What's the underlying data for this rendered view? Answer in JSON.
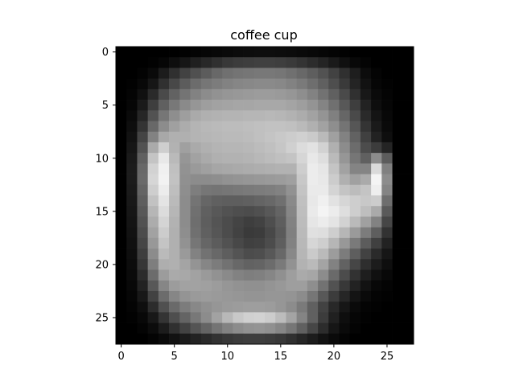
{
  "chart_data": {
    "type": "heatmap",
    "title": "coffee cup",
    "xlabel": "",
    "ylabel": "",
    "colormap": "gray",
    "x_range": [
      -0.5,
      27.5
    ],
    "y_range": [
      -0.5,
      27.5
    ],
    "x_ticks": [
      0,
      5,
      10,
      15,
      20,
      25
    ],
    "y_ticks": [
      0,
      5,
      10,
      15,
      20,
      25
    ],
    "grid": false,
    "value_range": [
      0,
      255
    ],
    "rows": 28,
    "cols": 28,
    "values": [
      [
        0,
        0,
        0,
        0,
        0,
        0,
        2,
        4,
        6,
        8,
        10,
        12,
        13,
        14,
        14,
        13,
        12,
        10,
        8,
        6,
        4,
        2,
        0,
        0,
        0,
        0,
        0,
        0
      ],
      [
        0,
        0,
        0,
        2,
        6,
        14,
        22,
        32,
        40,
        48,
        56,
        60,
        62,
        64,
        64,
        62,
        58,
        52,
        44,
        36,
        26,
        16,
        8,
        4,
        0,
        0,
        0,
        0
      ],
      [
        0,
        0,
        3,
        10,
        28,
        48,
        66,
        80,
        92,
        104,
        112,
        116,
        118,
        120,
        120,
        118,
        112,
        104,
        94,
        82,
        66,
        48,
        30,
        12,
        4,
        0,
        0,
        0
      ],
      [
        0,
        2,
        8,
        22,
        48,
        72,
        92,
        108,
        118,
        124,
        130,
        134,
        136,
        138,
        138,
        136,
        130,
        122,
        110,
        96,
        78,
        58,
        36,
        18,
        6,
        2,
        0,
        0
      ],
      [
        0,
        4,
        16,
        42,
        74,
        98,
        116,
        130,
        140,
        146,
        150,
        152,
        154,
        156,
        156,
        154,
        150,
        142,
        130,
        114,
        96,
        74,
        48,
        24,
        10,
        4,
        0,
        0
      ],
      [
        0,
        6,
        26,
        62,
        96,
        120,
        138,
        150,
        158,
        162,
        164,
        166,
        166,
        168,
        168,
        168,
        164,
        158,
        148,
        132,
        112,
        88,
        62,
        34,
        14,
        6,
        0,
        0
      ],
      [
        0,
        10,
        38,
        82,
        118,
        142,
        158,
        170,
        176,
        178,
        180,
        180,
        182,
        182,
        184,
        182,
        178,
        172,
        162,
        148,
        128,
        102,
        74,
        42,
        20,
        8,
        0,
        0
      ],
      [
        0,
        14,
        52,
        104,
        140,
        160,
        172,
        180,
        184,
        186,
        188,
        188,
        190,
        192,
        194,
        194,
        192,
        186,
        176,
        162,
        142,
        116,
        86,
        52,
        26,
        10,
        0,
        0
      ],
      [
        0,
        18,
        68,
        130,
        168,
        176,
        176,
        180,
        182,
        184,
        186,
        186,
        188,
        192,
        196,
        200,
        204,
        208,
        202,
        186,
        160,
        130,
        98,
        64,
        34,
        14,
        0,
        0
      ],
      [
        0,
        22,
        82,
        170,
        206,
        178,
        160,
        170,
        176,
        180,
        182,
        182,
        184,
        188,
        192,
        198,
        208,
        220,
        226,
        210,
        176,
        140,
        108,
        76,
        60,
        36,
        0,
        0
      ],
      [
        0,
        26,
        96,
        196,
        232,
        186,
        150,
        162,
        170,
        176,
        178,
        178,
        180,
        184,
        188,
        192,
        196,
        214,
        232,
        222,
        186,
        150,
        118,
        96,
        140,
        92,
        0,
        0
      ],
      [
        0,
        28,
        104,
        210,
        240,
        192,
        146,
        154,
        160,
        166,
        168,
        170,
        172,
        174,
        176,
        178,
        178,
        206,
        236,
        230,
        196,
        162,
        132,
        132,
        218,
        128,
        0,
        0
      ],
      [
        0,
        28,
        106,
        214,
        242,
        194,
        144,
        140,
        140,
        142,
        146,
        148,
        150,
        152,
        154,
        156,
        160,
        200,
        236,
        232,
        204,
        176,
        160,
        170,
        244,
        140,
        0,
        0
      ],
      [
        0,
        26,
        100,
        206,
        236,
        190,
        142,
        126,
        118,
        116,
        118,
        120,
        122,
        124,
        126,
        130,
        146,
        196,
        234,
        234,
        212,
        196,
        188,
        196,
        238,
        132,
        0,
        0
      ],
      [
        0,
        24,
        94,
        194,
        228,
        186,
        140,
        116,
        102,
        96,
        94,
        94,
        96,
        100,
        104,
        112,
        138,
        192,
        232,
        240,
        226,
        214,
        206,
        200,
        204,
        110,
        0,
        0
      ],
      [
        0,
        22,
        88,
        182,
        220,
        182,
        140,
        112,
        96,
        88,
        82,
        78,
        76,
        80,
        88,
        100,
        134,
        190,
        234,
        244,
        236,
        222,
        206,
        190,
        170,
        90,
        0,
        0
      ],
      [
        0,
        20,
        82,
        172,
        212,
        178,
        140,
        110,
        94,
        84,
        76,
        68,
        62,
        66,
        78,
        94,
        130,
        188,
        230,
        236,
        228,
        210,
        186,
        160,
        130,
        70,
        0,
        0
      ],
      [
        0,
        18,
        76,
        162,
        204,
        176,
        142,
        112,
        96,
        86,
        76,
        66,
        58,
        60,
        72,
        90,
        128,
        186,
        224,
        222,
        206,
        182,
        154,
        124,
        94,
        50,
        0,
        0
      ],
      [
        0,
        16,
        70,
        152,
        196,
        176,
        146,
        118,
        102,
        92,
        82,
        72,
        64,
        66,
        76,
        94,
        130,
        184,
        214,
        206,
        182,
        152,
        122,
        92,
        64,
        34,
        0,
        0
      ],
      [
        0,
        14,
        62,
        140,
        186,
        176,
        154,
        130,
        114,
        104,
        94,
        84,
        76,
        78,
        88,
        104,
        136,
        182,
        202,
        186,
        156,
        124,
        94,
        66,
        42,
        22,
        0,
        0
      ],
      [
        0,
        12,
        54,
        126,
        174,
        176,
        164,
        148,
        134,
        124,
        114,
        104,
        98,
        100,
        108,
        122,
        146,
        178,
        186,
        164,
        130,
        98,
        70,
        46,
        28,
        14,
        0,
        0
      ],
      [
        0,
        10,
        44,
        108,
        156,
        170,
        168,
        162,
        154,
        146,
        138,
        130,
        126,
        128,
        134,
        144,
        158,
        170,
        166,
        140,
        106,
        76,
        50,
        30,
        16,
        8,
        0,
        0
      ],
      [
        0,
        8,
        34,
        88,
        134,
        156,
        162,
        162,
        160,
        156,
        150,
        146,
        144,
        144,
        148,
        152,
        158,
        158,
        142,
        114,
        82,
        56,
        34,
        18,
        8,
        4,
        0,
        0
      ],
      [
        0,
        6,
        24,
        66,
        108,
        134,
        148,
        154,
        156,
        154,
        152,
        150,
        148,
        148,
        150,
        150,
        148,
        140,
        118,
        88,
        60,
        38,
        20,
        10,
        4,
        2,
        0,
        0
      ],
      [
        0,
        4,
        14,
        44,
        80,
        106,
        124,
        136,
        144,
        150,
        154,
        156,
        158,
        158,
        156,
        150,
        140,
        122,
        96,
        66,
        40,
        22,
        10,
        4,
        2,
        0,
        0,
        0
      ],
      [
        0,
        2,
        8,
        24,
        52,
        78,
        100,
        120,
        140,
        162,
        184,
        200,
        208,
        210,
        204,
        188,
        164,
        132,
        96,
        60,
        32,
        14,
        6,
        2,
        0,
        0,
        0,
        0
      ],
      [
        0,
        0,
        4,
        12,
        28,
        48,
        66,
        84,
        100,
        116,
        130,
        140,
        146,
        148,
        144,
        134,
        118,
        96,
        70,
        44,
        22,
        10,
        4,
        0,
        0,
        0,
        0,
        0
      ],
      [
        0,
        0,
        0,
        4,
        10,
        18,
        26,
        34,
        42,
        50,
        56,
        60,
        62,
        62,
        60,
        56,
        48,
        38,
        28,
        18,
        10,
        4,
        0,
        0,
        0,
        0,
        0,
        0
      ]
    ]
  }
}
